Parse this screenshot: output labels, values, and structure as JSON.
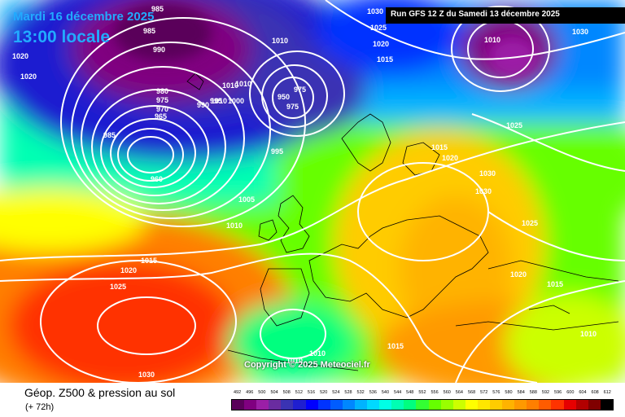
{
  "header": {
    "date": "Mardi 16 décembre 2025",
    "hour": "13:00 locale",
    "run": "Run GFS 12 Z du Samedi 13 décembre 2025"
  },
  "footer": {
    "title": "Géop. Z500 & pression au sol",
    "lead_time": "(+ 72h)",
    "copyright": "Copyright © 2025 Meteociel.fr"
  },
  "scale": {
    "values": [
      "492",
      "496",
      "500",
      "504",
      "508",
      "512",
      "516",
      "520",
      "524",
      "528",
      "532",
      "536",
      "540",
      "544",
      "548",
      "552",
      "556",
      "560",
      "564",
      "568",
      "572",
      "576",
      "580",
      "584",
      "588",
      "592",
      "596",
      "600",
      "604",
      "608",
      "612"
    ],
    "colors": [
      "#5a005a",
      "#800080",
      "#9b1fa6",
      "#6a2ca0",
      "#3a33b3",
      "#1f1fd0",
      "#0000ff",
      "#0033ff",
      "#005cff",
      "#0087ff",
      "#00b3ff",
      "#00d9ff",
      "#00ffe6",
      "#00ffb3",
      "#00ff7f",
      "#33ff33",
      "#66ff00",
      "#99ff00",
      "#ccff00",
      "#ffff00",
      "#ffe600",
      "#ffcc00",
      "#ffb300",
      "#ff9900",
      "#ff7f00",
      "#ff5c00",
      "#ff3300",
      "#e60000",
      "#b30000",
      "#800000",
      "#000000"
    ]
  },
  "isobar_labels": [
    "985",
    "985",
    "990",
    "1020",
    "1020",
    "1010",
    "1010",
    "1010",
    "1010",
    "1000",
    "995",
    "990",
    "980",
    "975",
    "970",
    "965",
    "985",
    "960",
    "975",
    "950",
    "975",
    "995",
    "1005",
    "1010",
    "1015",
    "1020",
    "1025",
    "1030",
    "1015",
    "1020",
    "1025",
    "1030",
    "1030",
    "1025",
    "1020",
    "1015",
    "1010",
    "1010",
    "1010",
    "1015",
    "1030",
    "1025",
    "1020",
    "1015",
    "1030",
    "1010"
  ]
}
